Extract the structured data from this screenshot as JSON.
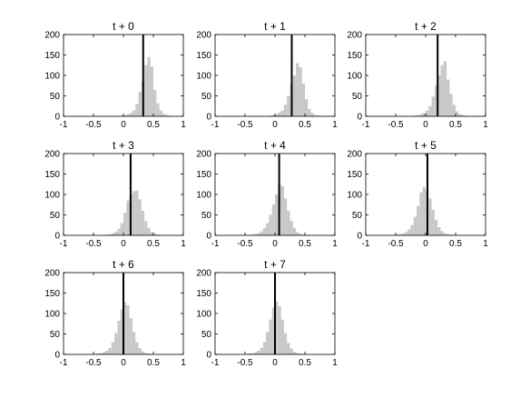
{
  "chart_data": [
    {
      "type": "bar",
      "title": "t + 0",
      "xlim": [
        -1,
        1
      ],
      "ylim": [
        0,
        200
      ],
      "xticks": [
        "-1",
        "-0.5",
        "0",
        "0.5",
        "1"
      ],
      "yticks": [
        "0",
        "50",
        "100",
        "150",
        "200"
      ],
      "bin_width": 0.05,
      "bin_start": -0.05,
      "counts": [
        2,
        3,
        5,
        8,
        14,
        30,
        60,
        85,
        125,
        145,
        122,
        65,
        32,
        14,
        6,
        3,
        2
      ],
      "vline_x": 0.33,
      "bar_color": "#c8c8c8",
      "vline_color": "#000000"
    },
    {
      "type": "bar",
      "title": "t + 1",
      "xlim": [
        -1,
        1
      ],
      "ylim": [
        0,
        200
      ],
      "xticks": [
        "-1",
        "-0.5",
        "0",
        "0.5",
        "1"
      ],
      "yticks": [
        "0",
        "50",
        "100",
        "150",
        "200"
      ],
      "bin_width": 0.05,
      "bin_start": -0.1,
      "counts": [
        2,
        3,
        5,
        9,
        14,
        28,
        50,
        78,
        100,
        130,
        120,
        80,
        42,
        18,
        8,
        3,
        2
      ],
      "vline_x": 0.28,
      "bar_color": "#c8c8c8",
      "vline_color": "#000000"
    },
    {
      "type": "bar",
      "title": "t + 2",
      "xlim": [
        -1,
        1
      ],
      "ylim": [
        0,
        200
      ],
      "xticks": [
        "-1",
        "-0.5",
        "0",
        "0.5",
        "1"
      ],
      "yticks": [
        "0",
        "50",
        "100",
        "150",
        "200"
      ],
      "bin_width": 0.05,
      "bin_start": -0.2,
      "counts": [
        2,
        3,
        5,
        8,
        14,
        25,
        48,
        75,
        100,
        125,
        135,
        90,
        55,
        28,
        12,
        5,
        3,
        2
      ],
      "vline_x": 0.2,
      "bar_color": "#c8c8c8",
      "vline_color": "#000000"
    },
    {
      "type": "bar",
      "title": "t + 3",
      "xlim": [
        -1,
        1
      ],
      "ylim": [
        0,
        200
      ],
      "xticks": [
        "-1",
        "-0.5",
        "0",
        "0.5",
        "1"
      ],
      "yticks": [
        "0",
        "50",
        "100",
        "150",
        "200"
      ],
      "bin_width": 0.05,
      "bin_start": -0.3,
      "counts": [
        2,
        3,
        5,
        9,
        16,
        30,
        55,
        85,
        100,
        108,
        110,
        88,
        60,
        35,
        18,
        8,
        4,
        2
      ],
      "vline_x": 0.12,
      "bar_color": "#c8c8c8",
      "vline_color": "#000000"
    },
    {
      "type": "bar",
      "title": "t + 4",
      "xlim": [
        -1,
        1
      ],
      "ylim": [
        0,
        200
      ],
      "xticks": [
        "-1",
        "-0.5",
        "0",
        "0.5",
        "1"
      ],
      "yticks": [
        "0",
        "50",
        "100",
        "150",
        "200"
      ],
      "bin_width": 0.05,
      "bin_start": -0.4,
      "counts": [
        2,
        3,
        5,
        10,
        18,
        30,
        50,
        75,
        100,
        125,
        120,
        90,
        60,
        35,
        18,
        8,
        4,
        2
      ],
      "vline_x": 0.07,
      "bar_color": "#c8c8c8",
      "vline_color": "#000000"
    },
    {
      "type": "bar",
      "title": "t + 5",
      "xlim": [
        -1,
        1
      ],
      "ylim": [
        0,
        200
      ],
      "xticks": [
        "-1",
        "-0.5",
        "0",
        "0.5",
        "1"
      ],
      "yticks": [
        "0",
        "50",
        "100",
        "150",
        "200"
      ],
      "bin_width": 0.05,
      "bin_start": -0.5,
      "counts": [
        2,
        3,
        5,
        8,
        14,
        25,
        45,
        72,
        105,
        118,
        110,
        90,
        62,
        38,
        20,
        10,
        5,
        3,
        2
      ],
      "vline_x": 0.03,
      "bar_color": "#c8c8c8",
      "vline_color": "#000000"
    },
    {
      "type": "bar",
      "title": "t + 6",
      "xlim": [
        -1,
        1
      ],
      "ylim": [
        0,
        200
      ],
      "xticks": [
        "-1",
        "-0.5",
        "0",
        "0.5",
        "1"
      ],
      "yticks": [
        "0",
        "50",
        "100",
        "150",
        "200"
      ],
      "bin_width": 0.05,
      "bin_start": -0.45,
      "counts": [
        2,
        3,
        5,
        9,
        16,
        30,
        52,
        82,
        110,
        128,
        120,
        88,
        55,
        30,
        15,
        7,
        3,
        2
      ],
      "vline_x": 0.0,
      "bar_color": "#c8c8c8",
      "vline_color": "#000000"
    },
    {
      "type": "bar",
      "title": "t + 7",
      "xlim": [
        -1,
        1
      ],
      "ylim": [
        0,
        200
      ],
      "xticks": [
        "-1",
        "-0.5",
        "0",
        "0.5",
        "1"
      ],
      "yticks": [
        "0",
        "50",
        "100",
        "150",
        "200"
      ],
      "bin_width": 0.05,
      "bin_start": -0.45,
      "counts": [
        2,
        3,
        5,
        9,
        16,
        30,
        55,
        85,
        115,
        130,
        118,
        85,
        52,
        28,
        14,
        6,
        3,
        2
      ],
      "vline_x": 0.0,
      "bar_color": "#c8c8c8",
      "vline_color": "#000000"
    }
  ]
}
